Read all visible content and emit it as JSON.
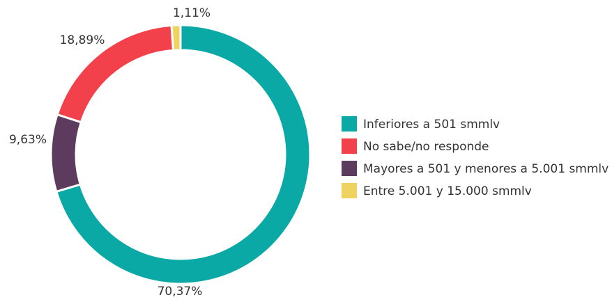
{
  "chart_data": {
    "type": "pie",
    "categories": [
      "Inferiores a 501 smmlv",
      "No sabe/no responde",
      "Mayores a 501 y menores a 5.001 smmlv",
      "Entre 5.001 y 15.000 smmlv"
    ],
    "values": [
      70.37,
      18.89,
      9.63,
      1.11
    ],
    "value_labels": [
      "70,37%",
      "18,89%",
      "9,63%",
      "1,11%"
    ],
    "colors": [
      "#0aa9a6",
      "#f2414b",
      "#5d3b5f",
      "#efd25f"
    ],
    "legend": "right"
  }
}
